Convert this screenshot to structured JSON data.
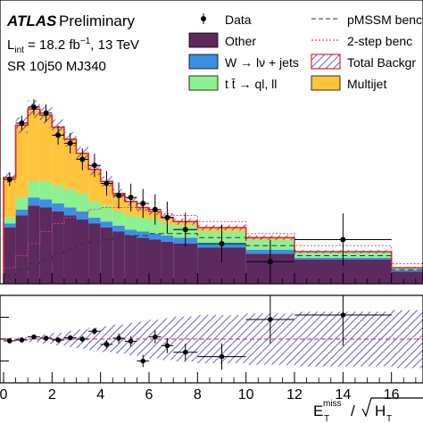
{
  "chart_data": [
    {
      "type": "stacked-histogram",
      "experiment_label": {
        "bold": "ATLAS",
        "normal": "Preliminary"
      },
      "lumi_label": {
        "prefix": "L",
        "sub": "int",
        "mid": " = 18.2 fb",
        "sup": "−1",
        "suffix": ", 13 TeV"
      },
      "region_label": "SR 10j50 MJ340",
      "xlim": [
        0,
        17.3
      ],
      "ylim": [
        0,
        1.0
      ],
      "y_scale": "linear, tick labels not visible",
      "legend_position": "top-right",
      "legend": [
        {
          "key": "data",
          "label": "Data",
          "style": "marker"
        },
        {
          "key": "other",
          "label": "Other",
          "style": "fill",
          "color": "#5c2a5e"
        },
        {
          "key": "wjets",
          "label": "W → lν + jets",
          "style": "fill",
          "color": "#3d8fe6"
        },
        {
          "key": "ttbar",
          "label": "t t̄ → ql, ll",
          "style": "fill",
          "color": "#8ef08e"
        },
        {
          "key": "multijet",
          "label": "Multijet",
          "style": "fill",
          "color": "#ffc43c"
        },
        {
          "key": "pmssm",
          "label": "pMSSM benc",
          "style": "dashed",
          "color": "#333333"
        },
        {
          "key": "twostep",
          "label": "2-step benc",
          "style": "dotted",
          "color": "#e0407a"
        },
        {
          "key": "total",
          "label": "Total Backgr",
          "style": "hatch",
          "color": "#3a3ab8"
        }
      ],
      "bin_edges": [
        0,
        0.5,
        1,
        1.5,
        2,
        2.5,
        3,
        3.5,
        4,
        4.5,
        5,
        5.5,
        6,
        6.5,
        7,
        8,
        10,
        12,
        16,
        17.3
      ],
      "stack": [
        {
          "name": "Other",
          "values": [
            0.28,
            0.34,
            0.39,
            0.38,
            0.36,
            0.34,
            0.32,
            0.3,
            0.28,
            0.26,
            0.24,
            0.23,
            0.22,
            0.21,
            0.2,
            0.18,
            0.15,
            0.12,
            0.06
          ]
        },
        {
          "name": "W → lν + jets",
          "values": [
            0.02,
            0.03,
            0.04,
            0.04,
            0.04,
            0.04,
            0.04,
            0.03,
            0.03,
            0.03,
            0.03,
            0.03,
            0.03,
            0.03,
            0.03,
            0.02,
            0.02,
            0.01,
            0.01
          ]
        },
        {
          "name": "t t̄ → ql, ll",
          "values": [
            0.03,
            0.06,
            0.08,
            0.09,
            0.09,
            0.09,
            0.09,
            0.08,
            0.08,
            0.07,
            0.07,
            0.07,
            0.07,
            0.06,
            0.06,
            0.06,
            0.05,
            0.03,
            0.01
          ]
        },
        {
          "name": "Multijet",
          "values": [
            0.2,
            0.36,
            0.36,
            0.33,
            0.29,
            0.25,
            0.2,
            0.16,
            0.12,
            0.09,
            0.07,
            0.05,
            0.04,
            0.03,
            0.02,
            0.02,
            0.01,
            0.0,
            0.0
          ]
        }
      ],
      "pmssm": [
        0.04,
        0.07,
        0.1,
        0.12,
        0.15,
        0.17,
        0.2,
        0.21,
        0.22,
        0.23,
        0.24,
        0.24,
        0.25,
        0.25,
        0.25,
        0.23,
        0.19,
        0.14,
        0.07
      ],
      "twostep": [
        0.08,
        0.14,
        0.2,
        0.26,
        0.3,
        0.33,
        0.35,
        0.37,
        0.38,
        0.38,
        0.38,
        0.37,
        0.36,
        0.35,
        0.34,
        0.31,
        0.25,
        0.19,
        0.1
      ],
      "data_points": [
        {
          "x": 0.25,
          "y": 0.52
        },
        {
          "x": 0.75,
          "y": 0.8
        },
        {
          "x": 1.25,
          "y": 0.88
        },
        {
          "x": 1.75,
          "y": 0.85
        },
        {
          "x": 2.25,
          "y": 0.74
        },
        {
          "x": 2.75,
          "y": 0.7
        },
        {
          "x": 3.25,
          "y": 0.62
        },
        {
          "x": 3.75,
          "y": 0.59
        },
        {
          "x": 4.25,
          "y": 0.5
        },
        {
          "x": 4.75,
          "y": 0.44
        },
        {
          "x": 5.25,
          "y": 0.43
        },
        {
          "x": 5.75,
          "y": 0.4
        },
        {
          "x": 6.25,
          "y": 0.37
        },
        {
          "x": 6.75,
          "y": 0.33
        },
        {
          "x": 7.5,
          "y": 0.27
        },
        {
          "x": 9,
          "y": 0.2
        },
        {
          "x": 11,
          "y": 0.11
        },
        {
          "x": 14,
          "y": 0.22
        }
      ]
    },
    {
      "type": "ratio",
      "xlabel": "E_T^miss / √H_T",
      "xlim": [
        0,
        17.3
      ],
      "xticks": [
        0,
        2,
        4,
        6,
        8,
        10,
        12,
        14,
        16
      ],
      "ylim": [
        0,
        2
      ],
      "points": [
        {
          "x": 0.25,
          "y": 0.96
        },
        {
          "x": 0.75,
          "y": 0.98
        },
        {
          "x": 1.25,
          "y": 1.05
        },
        {
          "x": 1.75,
          "y": 1.02
        },
        {
          "x": 2.25,
          "y": 0.98
        },
        {
          "x": 2.75,
          "y": 1.03
        },
        {
          "x": 3.25,
          "y": 1.0
        },
        {
          "x": 3.75,
          "y": 1.18
        },
        {
          "x": 4.25,
          "y": 0.88
        },
        {
          "x": 4.75,
          "y": 1.02
        },
        {
          "x": 5.25,
          "y": 0.95
        },
        {
          "x": 5.75,
          "y": 0.5
        },
        {
          "x": 6.25,
          "y": 1.05
        },
        {
          "x": 6.75,
          "y": 0.85
        },
        {
          "x": 7.5,
          "y": 0.7
        },
        {
          "x": 9,
          "y": 0.6
        },
        {
          "x": 11,
          "y": 1.45
        },
        {
          "x": 14,
          "y": 1.55
        }
      ],
      "errors": [
        0.03,
        0.04,
        0.04,
        0.05,
        0.05,
        0.06,
        0.07,
        0.08,
        0.09,
        0.11,
        0.12,
        0.14,
        0.15,
        0.17,
        0.2,
        0.3,
        0.55,
        0.7,
        0
      ]
    }
  ]
}
